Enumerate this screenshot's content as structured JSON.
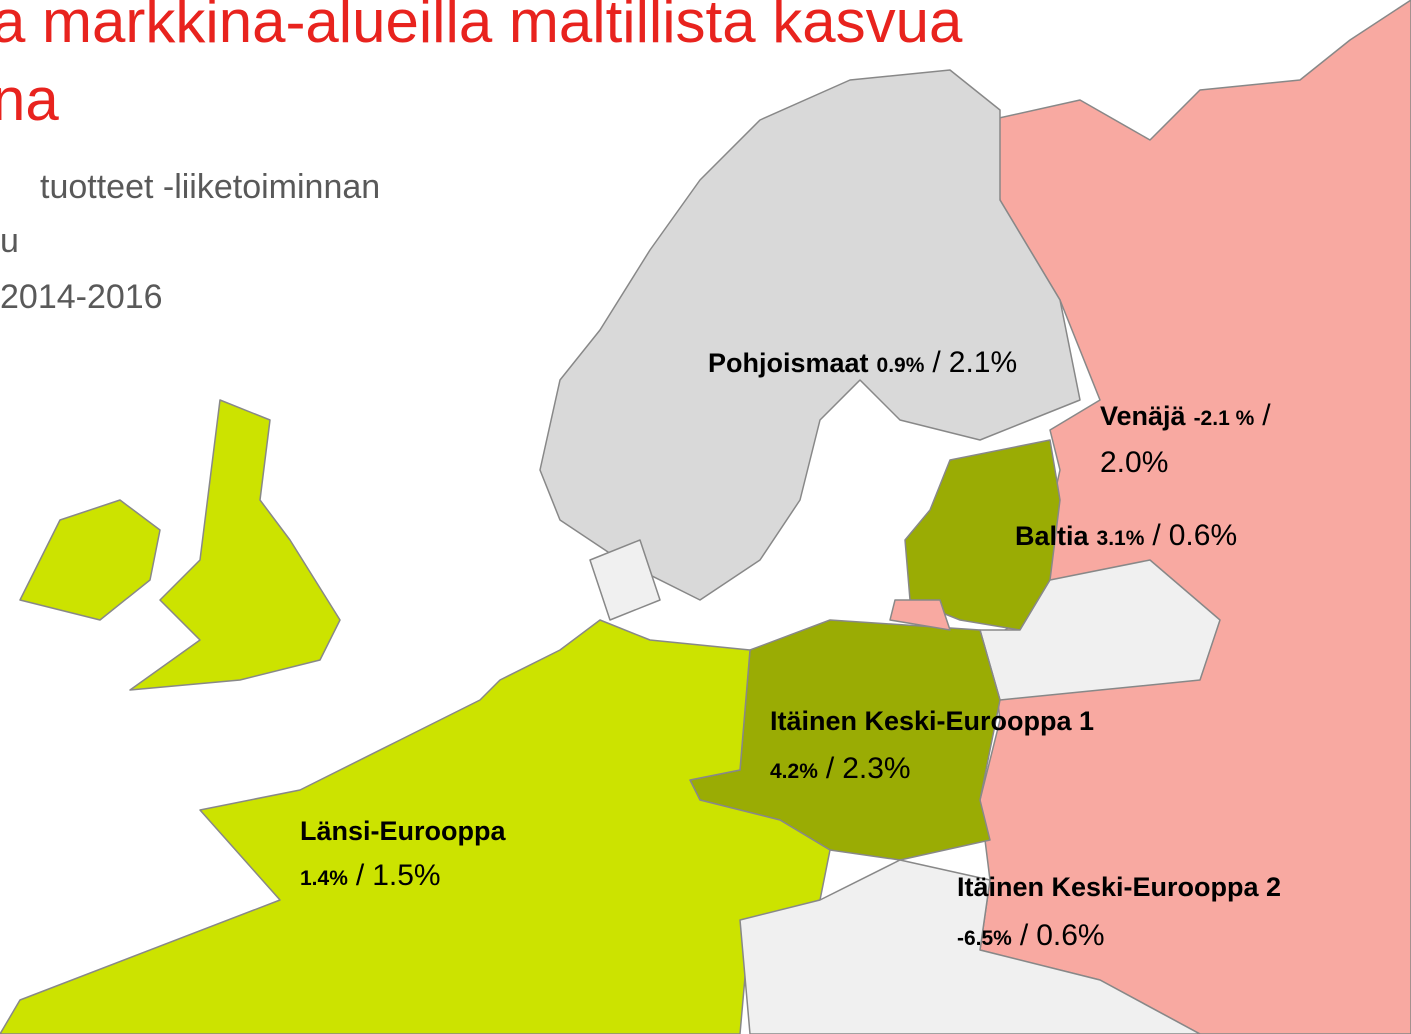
{
  "header": {
    "title": [
      "a markkina-alueilla maltillista kasvua",
      "na"
    ],
    "subtitle": [
      "tuotteet -liiketoiminnan",
      "u",
      "2014-2016"
    ]
  },
  "regions": [
    {
      "name": "Pohjoismaat",
      "growth": "0.9%",
      "sep": "/",
      "market": "2.1%"
    },
    {
      "name": "Venäjä",
      "growth": "-2.1 %",
      "sep": "/",
      "market": "2.0%"
    },
    {
      "name": "Baltia",
      "growth": "3.1%",
      "sep": "/",
      "market": "0.6%"
    },
    {
      "name": "Itäinen Keski-Eurooppa 1",
      "growth": "4.2%",
      "sep": "/",
      "market": "2.3%"
    },
    {
      "name": "Länsi-Eurooppa",
      "growth": "1.4%",
      "sep": "/",
      "market": "1.5%"
    },
    {
      "name": "Itäinen Keski-Eurooppa 2",
      "growth": "-6.5%",
      "sep": "/",
      "market": "0.6%"
    }
  ]
}
